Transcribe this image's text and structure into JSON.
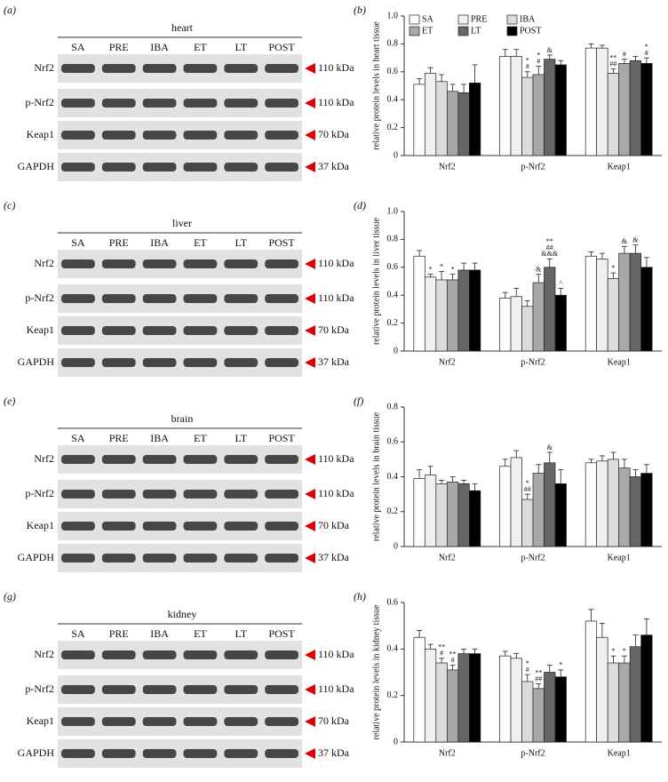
{
  "figure": {
    "blots": [
      {
        "panel": "(a)",
        "title": "heart",
        "lanes": [
          "SA",
          "PRE",
          "IBA",
          "ET",
          "LT",
          "POST"
        ],
        "rows": [
          {
            "label": "Nrf2",
            "size": "110 kDa"
          },
          {
            "label": "p-Nrf2",
            "size": "110 kDa"
          },
          {
            "label": "Keap1",
            "size": "70 kDa"
          },
          {
            "label": "GAPDH",
            "size": "37 kDa"
          }
        ]
      },
      {
        "panel": "(c)",
        "title": "liver",
        "lanes": [
          "SA",
          "PRE",
          "IBA",
          "ET",
          "LT",
          "POST"
        ],
        "rows": [
          {
            "label": "Nrf2",
            "size": "110 kDa"
          },
          {
            "label": "p-Nrf2",
            "size": "110 kDa"
          },
          {
            "label": "Keap1",
            "size": "70 kDa"
          },
          {
            "label": "GAPDH",
            "size": "37 kDa"
          }
        ]
      },
      {
        "panel": "(e)",
        "title": "brain",
        "lanes": [
          "SA",
          "PRE",
          "IBA",
          "ET",
          "LT",
          "POST"
        ],
        "rows": [
          {
            "label": "Nrf2",
            "size": "110 kDa"
          },
          {
            "label": "p-Nrf2",
            "size": "110 kDa"
          },
          {
            "label": "Keap1",
            "size": "70 kDa"
          },
          {
            "label": "GAPDH",
            "size": "37 kDa"
          }
        ]
      },
      {
        "panel": "(g)",
        "title": "kidney",
        "lanes": [
          "SA",
          "PRE",
          "IBA",
          "ET",
          "LT",
          "POST"
        ],
        "rows": [
          {
            "label": "Nrf2",
            "size": "110 kDa"
          },
          {
            "label": "p-Nrf2",
            "size": "110 kDa"
          },
          {
            "label": "Keap1",
            "size": "70 kDa"
          },
          {
            "label": "GAPDH",
            "size": "37 kDa"
          }
        ]
      }
    ]
  },
  "chart_data": [
    {
      "type": "bar",
      "panel": "(b)",
      "y_label": "relative protein levels in heart tissue",
      "legend": "top-left",
      "categories": [
        "Nrf2",
        "p-Nrf2",
        "Keap1"
      ],
      "ylim": [
        0,
        1.0
      ],
      "yticks": [
        0,
        0.2,
        0.4,
        0.6,
        0.8,
        {
          "value": 1.0,
          "label": "1.0"
        }
      ],
      "series": [
        {
          "name": "SA",
          "color": "#ffffff",
          "values": [
            0.51,
            0.71,
            0.77
          ],
          "errors": [
            0.04,
            0.05,
            0.03
          ],
          "annotations": [
            null,
            null,
            null
          ]
        },
        {
          "name": "PRE",
          "color": "#f0f0f0",
          "values": [
            0.59,
            0.71,
            0.77
          ],
          "errors": [
            0.04,
            0.05,
            0.02
          ],
          "annotations": [
            null,
            null,
            null
          ]
        },
        {
          "name": "IBA",
          "color": "#dcdcdc",
          "values": [
            0.53,
            0.56,
            0.59
          ],
          "errors": [
            0.05,
            0.04,
            0.03
          ],
          "annotations": [
            null,
            [
              "*",
              "#"
            ],
            [
              "**",
              "##"
            ]
          ]
        },
        {
          "name": "ET",
          "color": "#a8a8a8",
          "values": [
            0.46,
            0.58,
            0.66
          ],
          "errors": [
            0.05,
            0.06,
            0.03
          ],
          "annotations": [
            null,
            [
              "*",
              "#"
            ],
            [
              "#"
            ]
          ]
        },
        {
          "name": "LT",
          "color": "#666666",
          "values": [
            0.45,
            0.69,
            0.68
          ],
          "errors": [
            0.06,
            0.03,
            0.03
          ],
          "annotations": [
            null,
            [
              "&"
            ],
            null
          ]
        },
        {
          "name": "POST",
          "color": "#000000",
          "values": [
            0.52,
            0.65,
            0.66
          ],
          "errors": [
            0.13,
            0.03,
            0.04
          ],
          "annotations": [
            null,
            null,
            [
              "*",
              "#"
            ]
          ]
        }
      ]
    },
    {
      "type": "bar",
      "panel": "(d)",
      "y_label": "relative protein levels in liver tissue",
      "categories": [
        "Nrf2",
        "p-Nrf2",
        "Keap1"
      ],
      "ylim": [
        0,
        1.0
      ],
      "yticks": [
        0,
        0.2,
        0.4,
        0.6,
        0.8,
        {
          "value": 1.0,
          "label": "1.0"
        }
      ],
      "series": [
        {
          "name": "SA",
          "color": "#ffffff",
          "values": [
            0.68,
            0.38,
            0.68
          ],
          "errors": [
            0.04,
            0.04,
            0.03
          ],
          "annotations": [
            null,
            null,
            null
          ]
        },
        {
          "name": "PRE",
          "color": "#f0f0f0",
          "values": [
            0.53,
            0.39,
            0.66
          ],
          "errors": [
            0.02,
            0.06,
            0.04
          ],
          "annotations": [
            [
              "*"
            ],
            null,
            null
          ]
        },
        {
          "name": "IBA",
          "color": "#dcdcdc",
          "values": [
            0.51,
            0.32,
            0.52
          ],
          "errors": [
            0.06,
            0.04,
            0.04
          ],
          "annotations": [
            [
              "*"
            ],
            null,
            [
              "*"
            ]
          ]
        },
        {
          "name": "ET",
          "color": "#a8a8a8",
          "values": [
            0.51,
            0.49,
            0.7
          ],
          "errors": [
            0.04,
            0.06,
            0.05
          ],
          "annotations": [
            [
              "*"
            ],
            [
              "&"
            ],
            [
              "&"
            ]
          ]
        },
        {
          "name": "LT",
          "color": "#666666",
          "values": [
            0.58,
            0.6,
            0.7
          ],
          "errors": [
            0.05,
            0.06,
            0.06
          ],
          "annotations": [
            null,
            [
              "**",
              "##",
              "&&&"
            ],
            [
              "&"
            ]
          ]
        },
        {
          "name": "POST",
          "color": "#000000",
          "values": [
            0.58,
            0.4,
            0.6
          ],
          "errors": [
            0.05,
            0.05,
            0.07
          ],
          "annotations": [
            null,
            [
              "^"
            ],
            null
          ]
        }
      ]
    },
    {
      "type": "bar",
      "panel": "(f)",
      "y_label": "relative protein levels in brain tissue",
      "categories": [
        "Nrf2",
        "p-Nrf2",
        "Keap1"
      ],
      "ylim": [
        0,
        0.8
      ],
      "yticks": [
        0,
        0.2,
        0.4,
        0.6,
        0.8
      ],
      "series": [
        {
          "name": "SA",
          "color": "#ffffff",
          "values": [
            0.39,
            0.46,
            0.48
          ],
          "errors": [
            0.05,
            0.04,
            0.02
          ],
          "annotations": [
            null,
            null,
            null
          ]
        },
        {
          "name": "PRE",
          "color": "#f0f0f0",
          "values": [
            0.41,
            0.51,
            0.49
          ],
          "errors": [
            0.05,
            0.04,
            0.03
          ],
          "annotations": [
            null,
            null,
            null
          ]
        },
        {
          "name": "IBA",
          "color": "#dcdcdc",
          "values": [
            0.36,
            0.27,
            0.5
          ],
          "errors": [
            0.02,
            0.03,
            0.04
          ],
          "annotations": [
            null,
            [
              "*",
              "##"
            ],
            null
          ]
        },
        {
          "name": "ET",
          "color": "#a8a8a8",
          "values": [
            0.37,
            0.42,
            0.45
          ],
          "errors": [
            0.03,
            0.05,
            0.05
          ],
          "annotations": [
            null,
            null,
            null
          ]
        },
        {
          "name": "LT",
          "color": "#666666",
          "values": [
            0.36,
            0.48,
            0.4
          ],
          "errors": [
            0.02,
            0.06,
            0.04
          ],
          "annotations": [
            null,
            [
              "&"
            ],
            null
          ]
        },
        {
          "name": "POST",
          "color": "#000000",
          "values": [
            0.32,
            0.36,
            0.42
          ],
          "errors": [
            0.04,
            0.08,
            0.05
          ],
          "annotations": [
            null,
            null,
            null
          ]
        }
      ]
    },
    {
      "type": "bar",
      "panel": "(h)",
      "y_label": "relative protein levels in kidney tissue",
      "categories": [
        "Nrf2",
        "p-Nrf2",
        "Keap1"
      ],
      "ylim": [
        0,
        0.6
      ],
      "yticks": [
        0,
        0.2,
        0.4,
        0.6
      ],
      "series": [
        {
          "name": "SA",
          "color": "#ffffff",
          "values": [
            0.45,
            0.37,
            0.52
          ],
          "errors": [
            0.03,
            0.02,
            0.05
          ],
          "annotations": [
            null,
            null,
            null
          ]
        },
        {
          "name": "PRE",
          "color": "#f0f0f0",
          "values": [
            0.4,
            0.36,
            0.45
          ],
          "errors": [
            0.02,
            0.02,
            0.06
          ],
          "annotations": [
            null,
            null,
            null
          ]
        },
        {
          "name": "IBA",
          "color": "#dcdcdc",
          "values": [
            0.34,
            0.26,
            0.34
          ],
          "errors": [
            0.02,
            0.03,
            0.03
          ],
          "annotations": [
            [
              "**",
              "#"
            ],
            [
              "*",
              "#"
            ],
            [
              "*"
            ]
          ]
        },
        {
          "name": "ET",
          "color": "#a8a8a8",
          "values": [
            0.31,
            0.23,
            0.34
          ],
          "errors": [
            0.02,
            0.02,
            0.03
          ],
          "annotations": [
            [
              "**",
              "#"
            ],
            [
              "**",
              "##"
            ],
            [
              "*"
            ]
          ]
        },
        {
          "name": "LT",
          "color": "#666666",
          "values": [
            0.38,
            0.3,
            0.41
          ],
          "errors": [
            0.02,
            0.03,
            0.05
          ],
          "annotations": [
            null,
            null,
            null
          ]
        },
        {
          "name": "POST",
          "color": "#000000",
          "values": [
            0.38,
            0.28,
            0.46
          ],
          "errors": [
            0.02,
            0.03,
            0.07
          ],
          "annotations": [
            null,
            [
              "*"
            ],
            null
          ]
        }
      ]
    }
  ]
}
